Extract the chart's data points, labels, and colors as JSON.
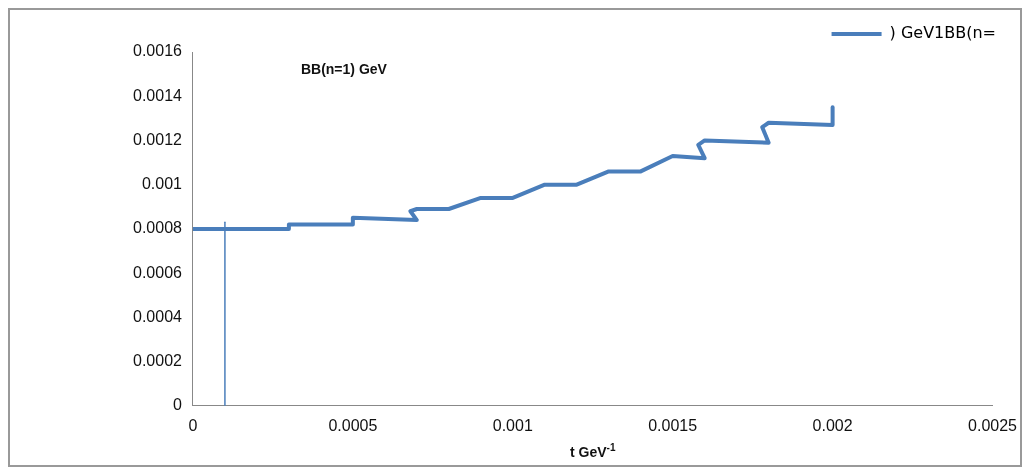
{
  "chart_data": {
    "type": "line",
    "title": "BB(n=1) GeV",
    "xlabel": "t GeV$^{-1}$",
    "xlim": [
      0,
      0.0025
    ],
    "xticks": [
      0,
      0.0005,
      0.001,
      0.0015,
      0.002,
      0.0025
    ],
    "ylim": [
      0,
      0.0016
    ],
    "yticks": [
      0,
      0.0002,
      0.0004,
      0.0006,
      0.0008,
      0.001,
      0.0012,
      0.0014,
      0.0016
    ],
    "grid": false,
    "legend": "top right",
    "marker": "none",
    "series": [
      {
        "name": ") GeV1BB(n=",
        "color": "#4a7ebb",
        "x": [
          0,
          0.0003,
          0.0003,
          0.0005,
          0.0005,
          0.0007,
          0.00068,
          0.0007,
          0.0008,
          0.0009,
          0.001,
          0.0011,
          0.0012,
          0.0013,
          0.0014,
          0.0015,
          0.0016,
          0.00158,
          0.0016,
          0.0018,
          0.00178,
          0.0018,
          0.002,
          0.002
        ],
        "values": [
          0.0008,
          0.0008,
          0.00082,
          0.00082,
          0.00085,
          0.00084,
          0.00088,
          0.00089,
          0.00089,
          0.00094,
          0.00094,
          0.001,
          0.001,
          0.00106,
          0.00106,
          0.00113,
          0.00112,
          0.00118,
          0.0012,
          0.00119,
          0.00126,
          0.00128,
          0.00127,
          0.00135
        ]
      },
      {
        "color": "#4a7ebb",
        "x": [
          0.0001,
          0.0001
        ],
        "values": [
          0,
          0.00083
        ]
      }
    ]
  }
}
